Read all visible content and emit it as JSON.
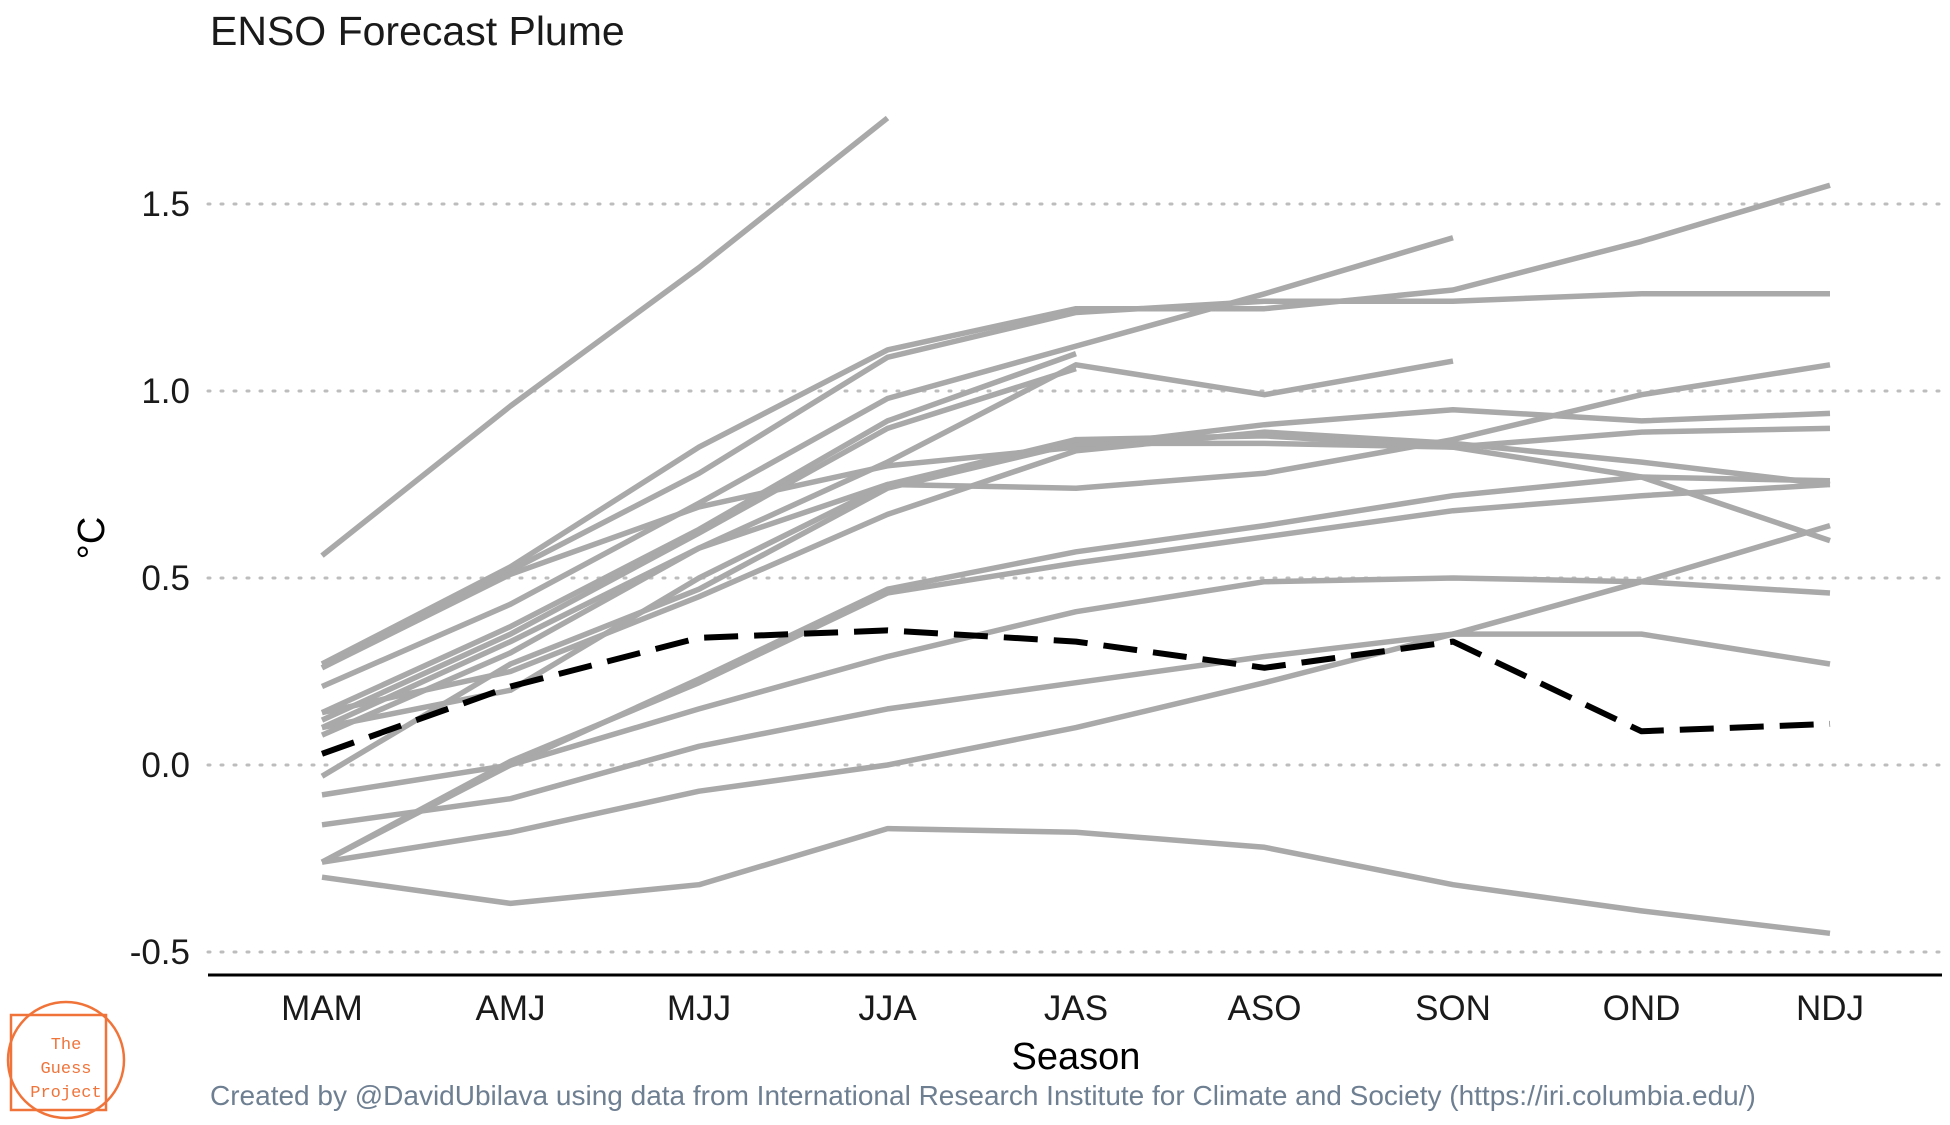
{
  "chart_data": {
    "type": "line",
    "title": "ENSO Forecast Plume",
    "xlabel": "Season",
    "ylabel": "°C",
    "categories": [
      "MAM",
      "AMJ",
      "MJJ",
      "JJA",
      "JAS",
      "ASO",
      "SON",
      "OND",
      "NDJ"
    ],
    "yticks": [
      -0.5,
      0.0,
      0.5,
      1.0,
      1.5
    ],
    "ytick_labels": [
      "-0.5",
      "0.0",
      "0.5",
      "1.0",
      "1.5"
    ],
    "ylim": [
      -0.55,
      1.75
    ],
    "grid": "horizontal dotted",
    "series": [
      {
        "values": [
          0.56,
          0.96,
          1.33,
          1.73,
          null,
          null,
          null,
          null,
          null
        ]
      },
      {
        "values": [
          0.27,
          0.53,
          0.85,
          1.11,
          1.22,
          1.22,
          1.27,
          1.4,
          1.55
        ]
      },
      {
        "values": [
          0.26,
          0.52,
          0.78,
          1.09,
          1.21,
          1.24,
          1.24,
          1.26,
          1.26
        ]
      },
      {
        "values": [
          0.21,
          0.43,
          0.7,
          0.98,
          1.12,
          1.26,
          1.41,
          null,
          null
        ]
      },
      {
        "values": [
          0.14,
          0.37,
          0.63,
          0.92,
          1.1,
          null,
          null,
          null,
          null
        ]
      },
      {
        "values": [
          0.12,
          0.35,
          0.62,
          0.9,
          1.06,
          null,
          null,
          null,
          null
        ]
      },
      {
        "values": [
          0.1,
          0.33,
          0.58,
          0.81,
          1.07,
          0.99,
          1.08,
          null,
          null
        ]
      },
      {
        "values": [
          0.08,
          0.3,
          0.58,
          0.75,
          0.74,
          0.78,
          0.87,
          0.99,
          1.07
        ]
      },
      {
        "values": [
          0.26,
          0.51,
          0.69,
          0.8,
          0.85,
          0.91,
          0.95,
          0.92,
          0.94
        ]
      },
      {
        "values": [
          -0.03,
          0.27,
          0.47,
          0.74,
          0.86,
          0.86,
          0.85,
          0.89,
          0.9
        ]
      },
      {
        "values": [
          0.14,
          0.25,
          0.45,
          0.67,
          0.84,
          0.89,
          0.86,
          0.81,
          0.75
        ]
      },
      {
        "values": [
          0.1,
          0.2,
          0.5,
          0.75,
          0.87,
          0.88,
          0.85,
          0.77,
          0.6
        ]
      },
      {
        "values": [
          -0.26,
          0.0,
          0.23,
          0.47,
          0.57,
          0.64,
          0.72,
          0.77,
          0.76
        ]
      },
      {
        "values": [
          -0.26,
          0.01,
          0.22,
          0.46,
          0.54,
          0.61,
          0.68,
          0.72,
          0.75
        ]
      },
      {
        "values": [
          -0.08,
          0.0,
          0.15,
          0.29,
          0.41,
          0.49,
          0.5,
          0.49,
          0.46
        ]
      },
      {
        "values": [
          -0.16,
          -0.09,
          0.05,
          0.15,
          0.22,
          0.29,
          0.35,
          0.35,
          0.27
        ]
      },
      {
        "values": [
          -0.26,
          -0.18,
          -0.07,
          0.0,
          0.1,
          0.22,
          0.35,
          0.49,
          0.64
        ]
      },
      {
        "values": [
          -0.3,
          -0.37,
          -0.32,
          -0.17,
          -0.18,
          -0.22,
          -0.32,
          -0.39,
          -0.45
        ]
      }
    ],
    "mean_series": {
      "values": [
        0.03,
        0.21,
        0.34,
        0.36,
        0.33,
        0.26,
        0.33,
        0.09,
        0.11
      ]
    },
    "colors": {
      "models": "#a9a9a9",
      "mean": "#000000",
      "grid": "#bdbdbd",
      "axis": "#000000"
    }
  },
  "caption": "Created by @DavidUbilava using data from International Research Institute for Climate and Society (https://iri.columbia.edu/)",
  "logo": {
    "line1": "The",
    "line2": "Guess",
    "line3": "Project",
    "color": "#f0743a"
  }
}
